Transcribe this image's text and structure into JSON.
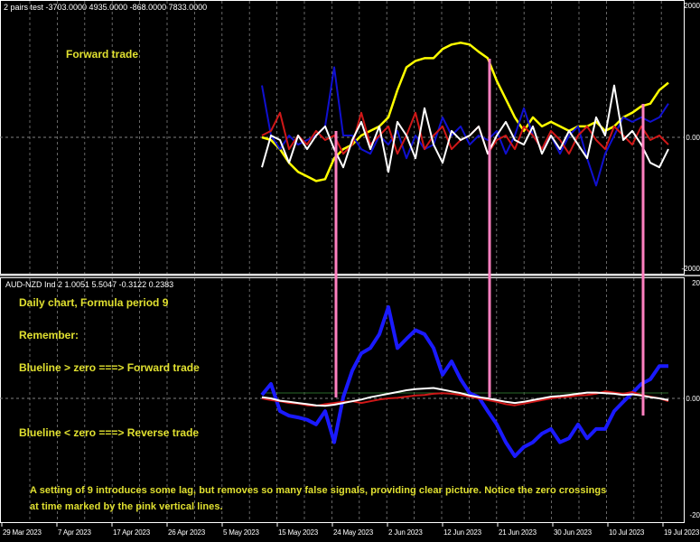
{
  "chart_data": [
    {
      "type": "line",
      "title": "2 pairs test -3703.0000 4935.0000 -868.0000 7833.0000",
      "ylim": [
        -2000,
        2000
      ],
      "y_ticks": [
        "2000",
        "0.00",
        "-2000"
      ],
      "grid": true,
      "annotation": "Forward trade",
      "series": [
        {
          "name": "yellow",
          "color": "#ffff00",
          "values": [
            0,
            -41,
            -178,
            -384,
            -521,
            -589,
            -658,
            -630,
            -315,
            -178,
            -110,
            27,
            96,
            164,
            301,
            712,
            1055,
            1151,
            1192,
            1192,
            1329,
            1397,
            1425,
            1397,
            1288,
            1192,
            849,
            575,
            301,
            96,
            301,
            164,
            233,
            164,
            96,
            164,
            164,
            233,
            96,
            164,
            301,
            370,
            466,
            507,
            712,
            822
          ]
        },
        {
          "name": "blue",
          "color": "#1010d0",
          "values": [
            781,
            27,
            -178,
            27,
            -110,
            -41,
            27,
            164,
            1055,
            27,
            27,
            -178,
            -247,
            27,
            -110,
            96,
            -315,
            27,
            -178,
            -110,
            301,
            27,
            164,
            -110,
            27,
            -41,
            96,
            -247,
            27,
            438,
            27,
            -178,
            27,
            -247,
            27,
            164,
            -315,
            -726,
            -247,
            27,
            301,
            233,
            301,
            233,
            301,
            507
          ]
        },
        {
          "name": "red",
          "color": "#d01818",
          "values": [
            27,
            96,
            370,
            -178,
            27,
            -110,
            96,
            -41,
            27,
            -247,
            -110,
            370,
            -110,
            27,
            164,
            -247,
            27,
            370,
            -178,
            27,
            164,
            -178,
            -41,
            27,
            164,
            -247,
            -41,
            27,
            -178,
            164,
            27,
            -178,
            96,
            -41,
            -247,
            27,
            164,
            -41,
            -178,
            164,
            27,
            -110,
            164,
            -41,
            27,
            -110
          ]
        },
        {
          "name": "white",
          "color": "#ffffff",
          "values": [
            -452,
            27,
            -41,
            -384,
            27,
            -178,
            27,
            164,
            -178,
            -452,
            -41,
            233,
            -178,
            164,
            -521,
            233,
            27,
            -315,
            438,
            -110,
            -384,
            96,
            -41,
            27,
            164,
            -247,
            27,
            233,
            -41,
            -110,
            164,
            -247,
            27,
            -178,
            96,
            -110,
            -315,
            301,
            27,
            781,
            -41,
            96,
            -110,
            -384,
            -452,
            -178
          ]
        }
      ]
    },
    {
      "type": "line",
      "title": "AUD-NZD Ind 2 1.0051 5.5047 -0.3122 0.2383",
      "ylim": [
        -20,
        20
      ],
      "y_ticks": [
        "20",
        "0.00",
        "-20"
      ],
      "grid": true,
      "annotations": [
        "Daily chart, Formula period 9",
        "Remember:",
        "Blueline > zero  ===> Forward trade",
        "Blueline < zero  ===> Reverse trade",
        "A setting of 9 introduces some lag, but removes so many false signals,  providing clear picture. Notice the zero crossings",
        "at time marked by the pink vertical lines."
      ],
      "series": [
        {
          "name": "blue",
          "color": "#1a1aff",
          "values": [
            0.6,
            2.5,
            -2.2,
            -3.0,
            -3.3,
            -3.7,
            -4.5,
            -2.2,
            -7.6,
            0.2,
            4.8,
            7.8,
            8.7,
            11.1,
            15.8,
            8.7,
            10.3,
            11.8,
            11.1,
            8.7,
            4.1,
            6.4,
            3.3,
            0.9,
            0.2,
            -2.2,
            -4.5,
            -7.6,
            -10,
            -8.4,
            -7.6,
            -6.1,
            -5.3,
            -7.6,
            -6.9,
            -4.5,
            -6.9,
            -5.3,
            -5.3,
            -2.2,
            -0.6,
            0.9,
            2.5,
            3.3,
            5.6,
            5.6
          ]
        },
        {
          "name": "red",
          "color": "#d01818",
          "values": [
            0,
            -0.3,
            -0.5,
            -0.8,
            -0.9,
            -1.2,
            -1.3,
            -1,
            -0.8,
            -0.6,
            -0.5,
            -0.8,
            -0.5,
            -0.2,
            0,
            0.1,
            0.3,
            0.5,
            0.6,
            0.8,
            0.9,
            0.8,
            0.6,
            0.3,
            0,
            -0.3,
            -0.6,
            -1,
            -1.2,
            -0.9,
            -0.6,
            -0.3,
            0,
            0.2,
            0.3,
            0.5,
            0.6,
            0.8,
            1.2,
            1,
            0.8,
            1.1,
            0.6,
            0.3,
            0,
            -0.5
          ]
        },
        {
          "name": "white",
          "color": "#ffffff",
          "values": [
            0.2,
            0,
            -0.4,
            -0.6,
            -0.8,
            -1,
            -1.2,
            -1.3,
            -1.1,
            -0.8,
            -0.5,
            -0.2,
            0.2,
            0.5,
            0.8,
            1.1,
            1.4,
            1.6,
            1.7,
            1.8,
            1.5,
            1.2,
            0.9,
            0.5,
            0.2,
            0,
            -0.3,
            -0.6,
            -0.8,
            -0.6,
            -0.3,
            0,
            0.3,
            0.4,
            0.6,
            0.8,
            1,
            1,
            0.9,
            0.8,
            0.6,
            0.7,
            0.5,
            0.2,
            0,
            -0.3
          ]
        }
      ]
    }
  ],
  "x_ticks": [
    "29 Mar 2023",
    "7 Apr 2023",
    "17 Apr 2023",
    "26 Apr 2023",
    "5 May 2023",
    "15 May 2023",
    "24 May 2023",
    "2 Jun 2023",
    "12 Jun 2023",
    "21 Jun 2023",
    "30 Jun 2023",
    "10 Jul 2023",
    "19 Jul 2023"
  ],
  "pink_lines_at_index": [
    8,
    25,
    42
  ],
  "colors": {
    "background": "#000000",
    "text": "#e0e030",
    "pink": "#ff80c0",
    "grid": "#808080"
  }
}
